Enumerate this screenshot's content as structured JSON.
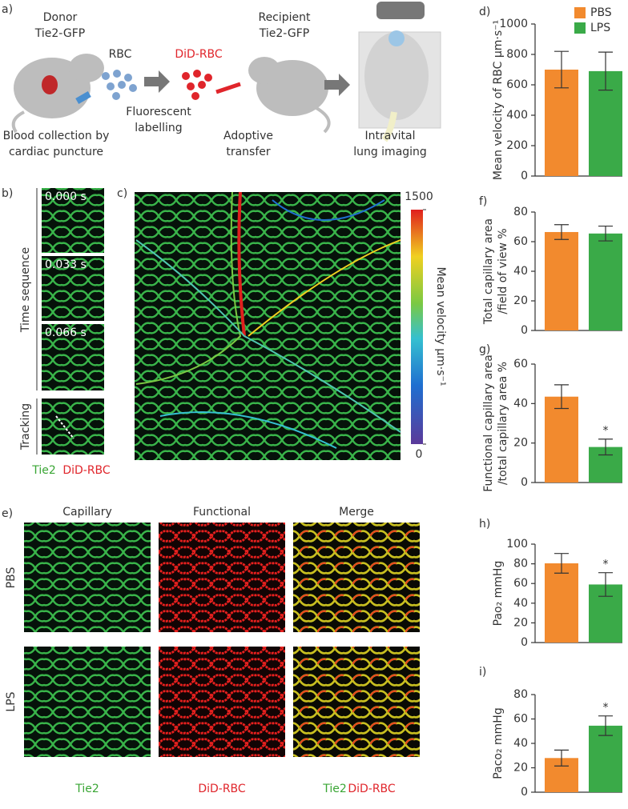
{
  "panel_a": {
    "label": "a)",
    "donor": [
      "Donor",
      "Tie2-GFP"
    ],
    "rbc": "RBC",
    "did_rbc": "DiD-RBC",
    "recipient": [
      "Recipient",
      "Tie2-GFP"
    ],
    "step1": [
      "Blood collection by",
      "cardiac puncture"
    ],
    "step2": [
      "Fluorescent",
      "labelling"
    ],
    "step3": [
      "Adoptive",
      "transfer"
    ],
    "step4": [
      "Intravital",
      "lung imaging"
    ]
  },
  "panel_b": {
    "label": "b)",
    "times": [
      "0.000 s",
      "0.033 s",
      "0.066 s"
    ],
    "sequence": "Time sequence",
    "tracking": "Tracking",
    "stain1": "Tie2",
    "stain2": "DiD-RBC"
  },
  "panel_c": {
    "label": "c)",
    "colorbar": {
      "title": "Mean velocity µm·s⁻¹",
      "lim": [
        0,
        1500
      ],
      "ticks": [
        0,
        1500
      ]
    }
  },
  "panel_e": {
    "label": "e)",
    "columns": [
      "Capillary",
      "Functional",
      "Merge"
    ],
    "rows": [
      "PBS",
      "LPS"
    ],
    "stains": [
      "Tie2",
      "DiD-RBC",
      "Tie2",
      "DiD-RBC"
    ]
  },
  "chart_data": [
    {
      "type": "bar",
      "panel": "d)",
      "ylabel": [
        "Mean velocity of RBC µm·s⁻¹"
      ],
      "ylim": [
        0,
        1000
      ],
      "yticks": [
        0,
        200,
        400,
        600,
        800,
        1000
      ],
      "legend": "upper right",
      "series": [
        {
          "name": "PBS",
          "color": "#f28a2e",
          "values": [
            700
          ],
          "errors": [
            120
          ]
        },
        {
          "name": "LPS",
          "color": "#3aaa48",
          "values": [
            690
          ],
          "errors": [
            125
          ]
        }
      ]
    },
    {
      "type": "bar",
      "panel": "f)",
      "ylabel": [
        "Total capillary area",
        "/field of view %"
      ],
      "ylim": [
        0,
        80
      ],
      "yticks": [
        0,
        20,
        40,
        60,
        80
      ],
      "series": [
        {
          "color": "#f28a2e",
          "values": [
            66.5
          ],
          "errors": [
            5
          ]
        },
        {
          "color": "#3aaa48",
          "values": [
            65.5
          ],
          "errors": [
            5
          ]
        }
      ]
    },
    {
      "type": "bar",
      "panel": "g)",
      "ylabel": [
        "Functional capillary area",
        "/total capillary area %"
      ],
      "ylim": [
        0,
        60
      ],
      "yticks": [
        0,
        20,
        40,
        60
      ],
      "series": [
        {
          "color": "#f28a2e",
          "values": [
            43.5
          ],
          "errors": [
            6
          ]
        },
        {
          "color": "#3aaa48",
          "values": [
            18
          ],
          "errors": [
            4
          ],
          "marker": "*"
        }
      ]
    },
    {
      "type": "bar",
      "panel": "h)",
      "ylabel": [
        "Pao₂ mmHg"
      ],
      "ylim": [
        0,
        100
      ],
      "yticks": [
        0,
        20,
        40,
        60,
        80,
        100
      ],
      "series": [
        {
          "color": "#f28a2e",
          "values": [
            80.5
          ],
          "errors": [
            10
          ]
        },
        {
          "color": "#3aaa48",
          "values": [
            59
          ],
          "errors": [
            12
          ],
          "marker": "*"
        }
      ]
    },
    {
      "type": "bar",
      "panel": "i)",
      "ylabel": [
        "Paco₂ mmHg"
      ],
      "ylim": [
        0,
        80
      ],
      "yticks": [
        0,
        20,
        40,
        60,
        80
      ],
      "series": [
        {
          "color": "#f28a2e",
          "values": [
            28
          ],
          "errors": [
            6.5
          ]
        },
        {
          "color": "#3aaa48",
          "values": [
            54.5
          ],
          "errors": [
            8
          ],
          "marker": "*"
        }
      ]
    }
  ]
}
